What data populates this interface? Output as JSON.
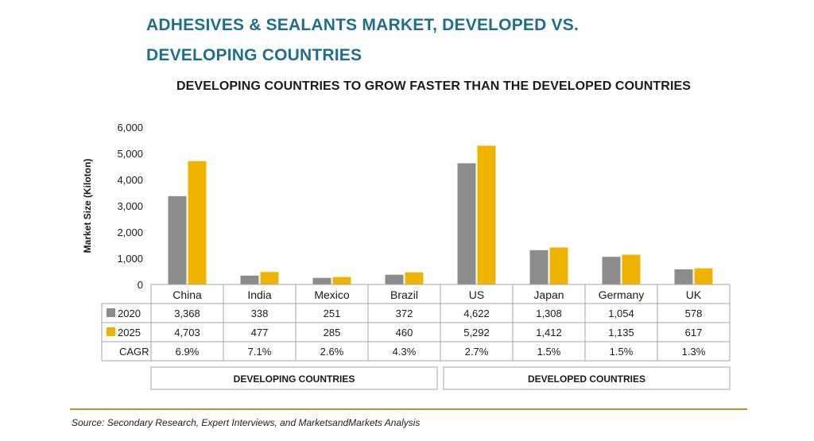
{
  "title_line1": "ADHESIVES & SEALANTS MARKET, DEVELOPED VS.",
  "title_line2": "DEVELOPING COUNTRIES",
  "subtitle": "DEVELOPING COUNTRIES TO GROW FASTER THAN THE DEVELOPED COUNTRIES",
  "source": "Source: Secondary Research, Expert Interviews, and MarketsandMarkets Analysis",
  "chart_data": {
    "type": "bar",
    "categories": [
      "China",
      "India",
      "Mexico",
      "Brazil",
      "US",
      "Japan",
      "Germany",
      "UK"
    ],
    "series": [
      {
        "name": "2020",
        "color": "#8c8c8c",
        "values": [
          3368,
          338,
          251,
          372,
          4622,
          1308,
          1054,
          578
        ],
        "labels": [
          "3,368",
          "338",
          "251",
          "372",
          "4,622",
          "1,308",
          "1,054",
          "578"
        ]
      },
      {
        "name": "2025",
        "color": "#f0b400",
        "values": [
          4703,
          477,
          285,
          460,
          5292,
          1412,
          1135,
          617
        ],
        "labels": [
          "4,703",
          "477",
          "285",
          "460",
          "5,292",
          "1,412",
          "1,135",
          "617"
        ]
      }
    ],
    "cagr_label": "CAGR",
    "cagr": [
      "6.9%",
      "7.1%",
      "2.6%",
      "4.3%",
      "2.7%",
      "1.5%",
      "1.5%",
      "1.3%"
    ],
    "ylabel": "Market Size (Kiloton)",
    "xlabel": "",
    "ylim": [
      0,
      6000
    ],
    "yticks": [
      0,
      1000,
      2000,
      3000,
      4000,
      5000,
      6000
    ],
    "ytick_labels": [
      "0",
      "1,000",
      "2,000",
      "3,000",
      "4,000",
      "5,000",
      "6,000"
    ],
    "groups": [
      {
        "label": "DEVELOPING COUNTRIES",
        "categories": [
          "China",
          "India",
          "Mexico",
          "Brazil"
        ]
      },
      {
        "label": "DEVELOPED COUNTRIES",
        "categories": [
          "US",
          "Japan",
          "Germany",
          "UK"
        ]
      }
    ],
    "grid": false
  }
}
